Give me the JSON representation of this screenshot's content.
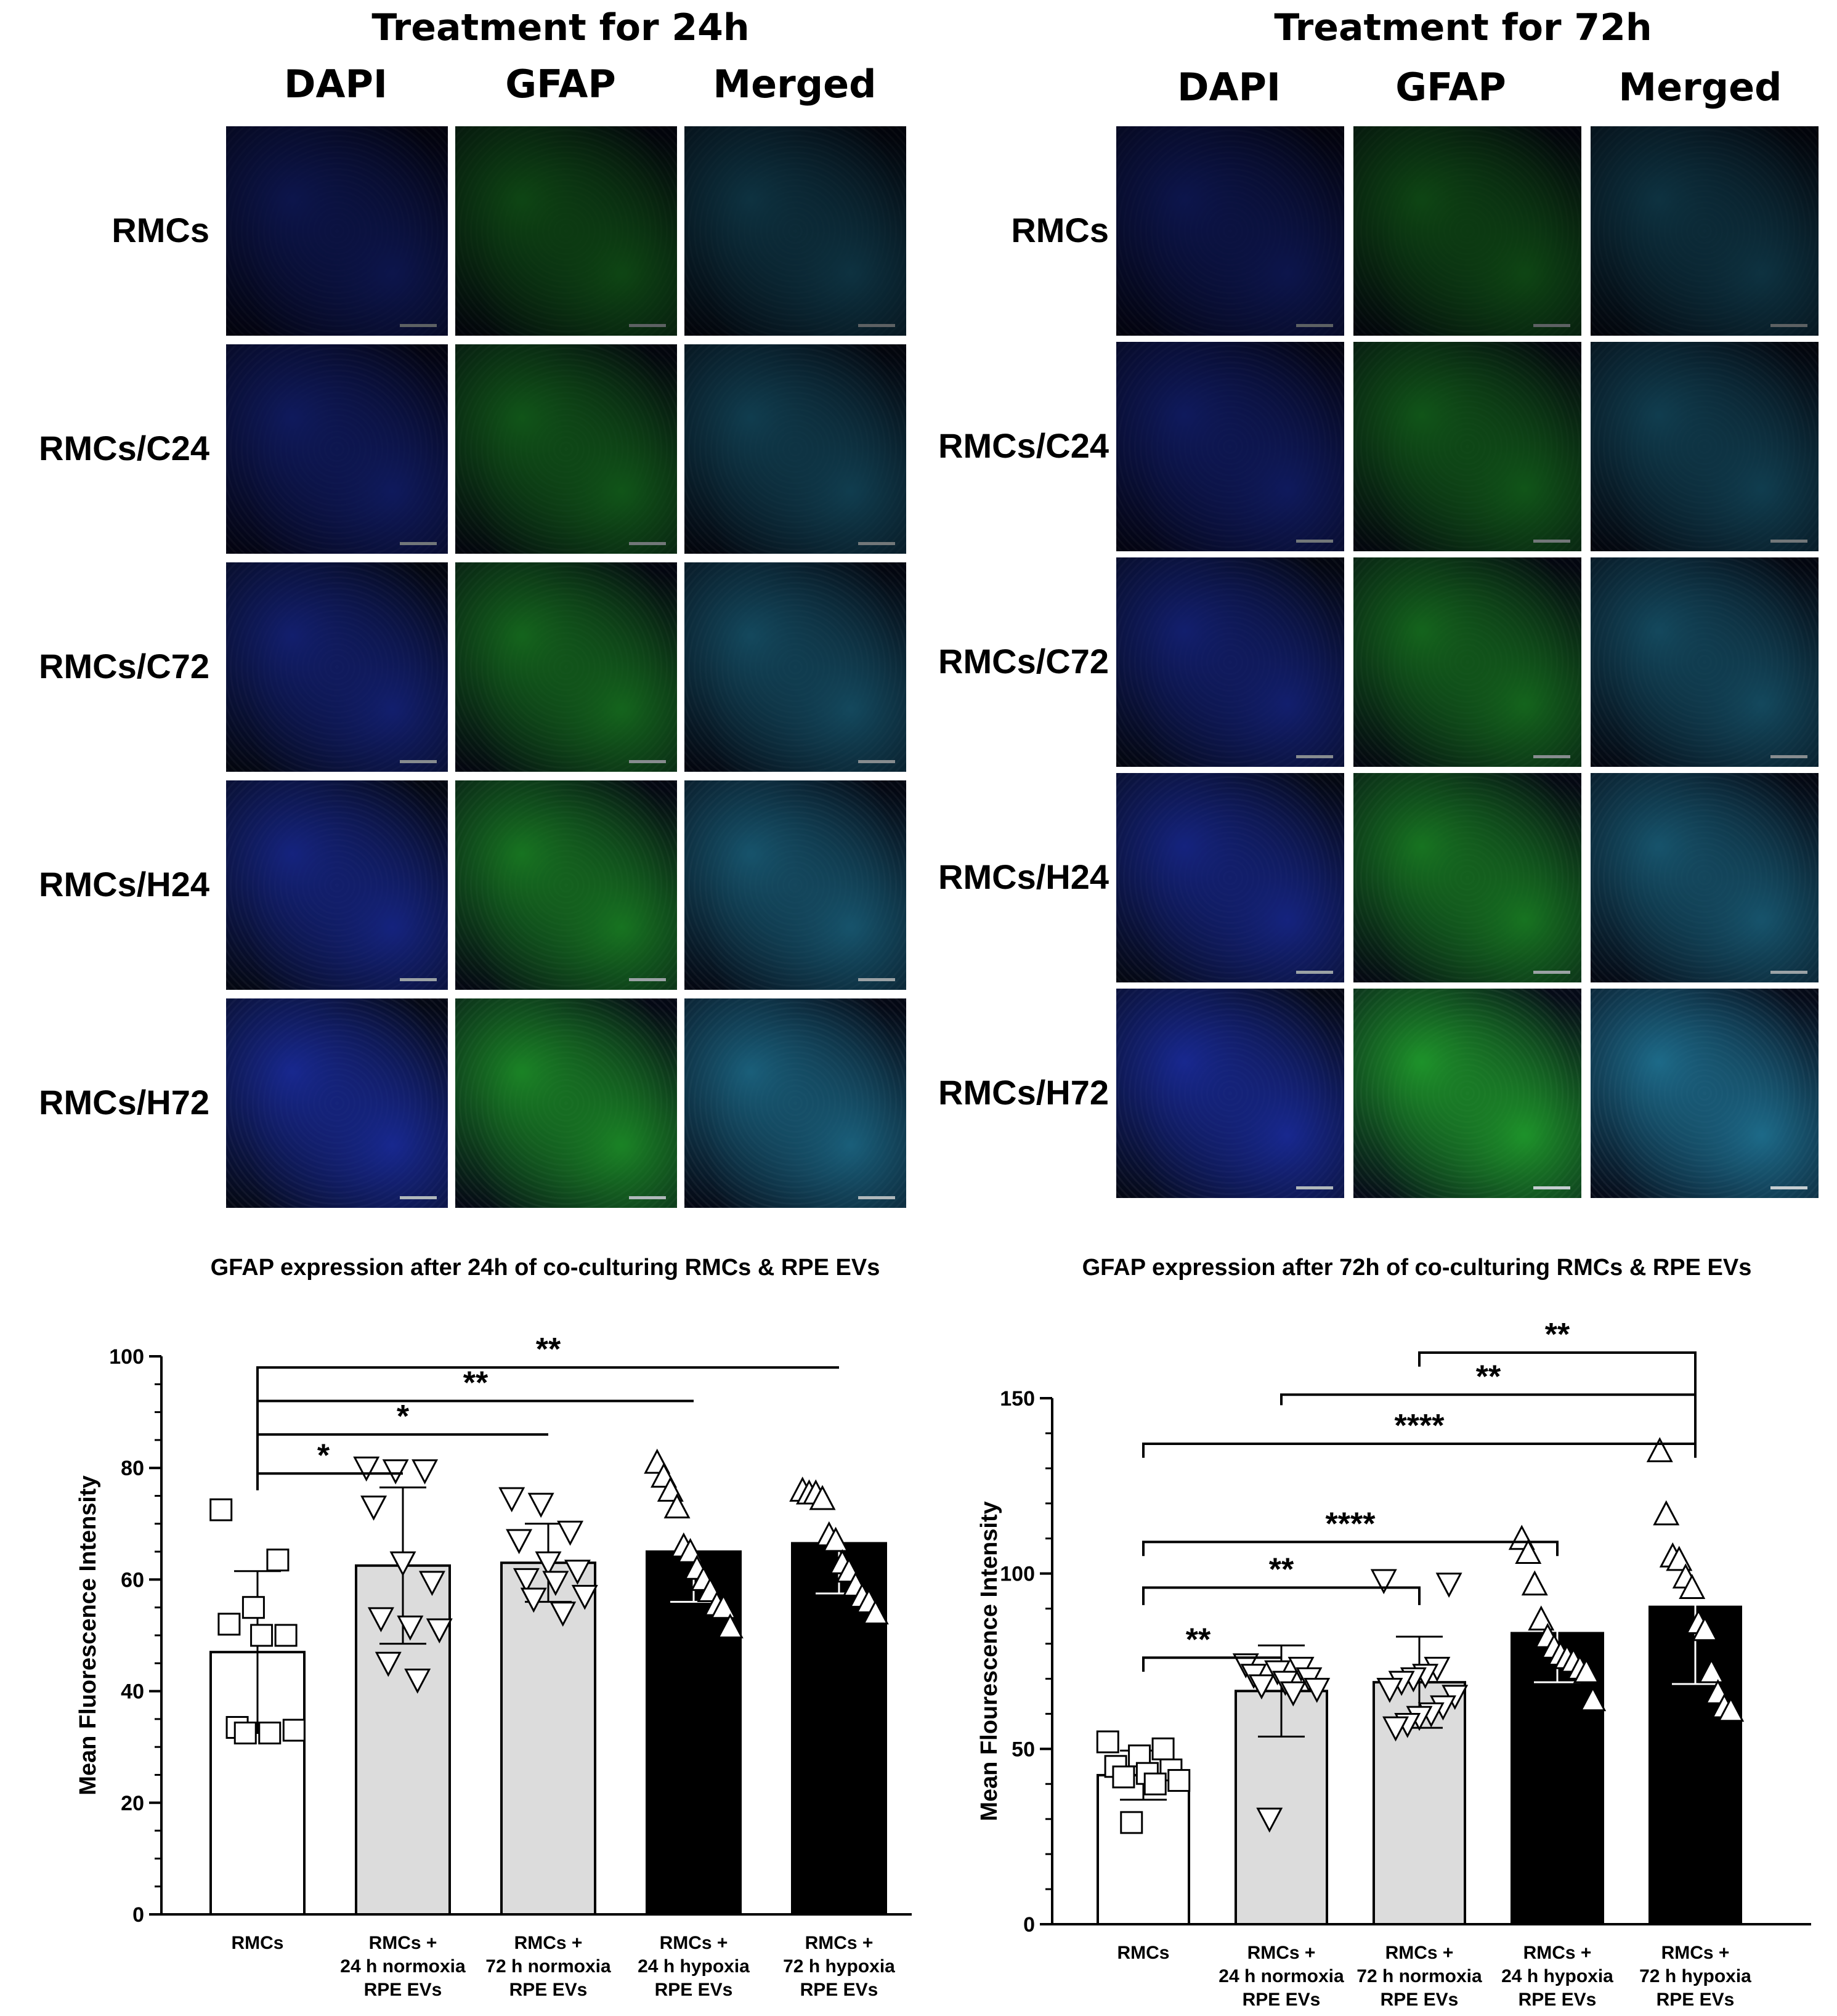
{
  "micrographs": {
    "left": {
      "title": "Treatment for 24h",
      "columns": [
        "DAPI",
        "GFAP",
        "Merged"
      ],
      "rows": [
        "RMCs",
        "RMCs/C24",
        "RMCs/C72",
        "RMCs/H24",
        "RMCs/H72"
      ]
    },
    "right": {
      "title": "Treatment for 72h",
      "columns": [
        "DAPI",
        "GFAP",
        "Merged"
      ],
      "rows": [
        "RMCs",
        "RMCs/C24",
        "RMCs/C72",
        "RMCs/H24",
        "RMCs/H72"
      ]
    },
    "stain_colors": {
      "DAPI": "#1c2fa8",
      "GFAP": "#1f9a2c",
      "Merged": "#1e6f8f"
    }
  },
  "chart_data": [
    {
      "type": "bar",
      "title": "GFAP expression after 24h of co-culturing RMCs & RPE EVs",
      "xlabel": "",
      "ylabel": "Mean Fluorescence Intensity",
      "ylim": [
        0,
        100
      ],
      "yticks": [
        "0",
        "20",
        "40",
        "60",
        "80",
        "100"
      ],
      "categories": [
        "RMCs",
        "RMCs +\n24 h normoxia\nRPE EVs",
        "RMCs +\n72 h normoxia\nRPE EVs",
        "RMCs +\n24 h hypoxia\nRPE EVs",
        "RMCs +\n72 h hypoxia\nRPE EVs"
      ],
      "values": [
        47,
        62.5,
        63,
        65,
        66.5
      ],
      "error": [
        14.5,
        14,
        7,
        9,
        9
      ],
      "bar_colors": [
        "#ffffff",
        "#dcdcdc",
        "#dcdcdc",
        "#000000",
        "#000000"
      ],
      "markers": [
        "square",
        "triangle-down",
        "triangle-down",
        "triangle-up",
        "triangle-up"
      ],
      "points": [
        [
          72.5,
          63.5,
          55,
          52,
          50,
          50,
          33.5,
          33,
          32.5,
          32.5
        ],
        [
          80,
          79.5,
          79.5,
          73,
          63,
          59.5,
          53,
          51.5,
          51,
          45,
          42
        ],
        [
          74.5,
          73.5,
          68.5,
          67,
          63,
          61.5,
          60,
          59.5,
          57,
          56.5,
          54
        ],
        [
          81,
          78.5,
          76,
          73,
          66,
          65,
          62,
          60,
          58,
          55.5,
          55,
          51.5
        ],
        [
          76,
          75.5,
          75.5,
          74.5,
          68,
          67,
          63,
          61.5,
          59,
          57,
          56,
          54
        ]
      ],
      "comparisons": [
        {
          "from": 0,
          "to": 1,
          "label": "*"
        },
        {
          "from": 0,
          "to": 2,
          "label": "*"
        },
        {
          "from": 0,
          "to": 3,
          "label": "**"
        },
        {
          "from": 0,
          "to": 4,
          "label": "**"
        }
      ]
    },
    {
      "type": "bar",
      "title": "GFAP expression after 72h of co-culturing RMCs & RPE EVs",
      "xlabel": "",
      "ylabel": "Mean Flourescence Intensity",
      "ylim": [
        0,
        150
      ],
      "yticks": [
        "0",
        "50",
        "100",
        "150"
      ],
      "categories": [
        "RMCs",
        "RMCs +\n24 h normoxia\nRPE EVs",
        "RMCs +\n72 h normoxia\nRPE EVs",
        "RMCs +\n24 h hypoxia\nRPE EVs",
        "RMCs +\n72 h hypoxia\nRPE EVs"
      ],
      "values": [
        42.5,
        66.5,
        69,
        83,
        90.5
      ],
      "error": [
        7,
        13,
        13,
        14,
        22
      ],
      "bar_colors": [
        "#ffffff",
        "#dcdcdc",
        "#dcdcdc",
        "#000000",
        "#000000"
      ],
      "markers": [
        "square",
        "triangle-down",
        "triangle-down",
        "triangle-up",
        "triangle-up"
      ],
      "points": [
        [
          52,
          50,
          48,
          45,
          44,
          43,
          42,
          41,
          40,
          29
        ],
        [
          74,
          73,
          72,
          71,
          70,
          69,
          68,
          67,
          66,
          30
        ],
        [
          98,
          97,
          73,
          71,
          70,
          69,
          67,
          65,
          62,
          60,
          59,
          57,
          56
        ],
        [
          110,
          106,
          97,
          87,
          82,
          79,
          77,
          76,
          75,
          73,
          72,
          64
        ],
        [
          135,
          117,
          105,
          104,
          99,
          96,
          86,
          84,
          72,
          66,
          62,
          61
        ]
      ],
      "comparisons": [
        {
          "from": 0,
          "to": 1,
          "label": "**"
        },
        {
          "from": 0,
          "to": 2,
          "label": "**"
        },
        {
          "from": 0,
          "to": 3,
          "label": "****"
        },
        {
          "from": 0,
          "to": 4,
          "label": "****"
        },
        {
          "from": 1,
          "to": 4,
          "label": "**"
        },
        {
          "from": 2,
          "to": 4,
          "label": "**"
        }
      ]
    }
  ]
}
